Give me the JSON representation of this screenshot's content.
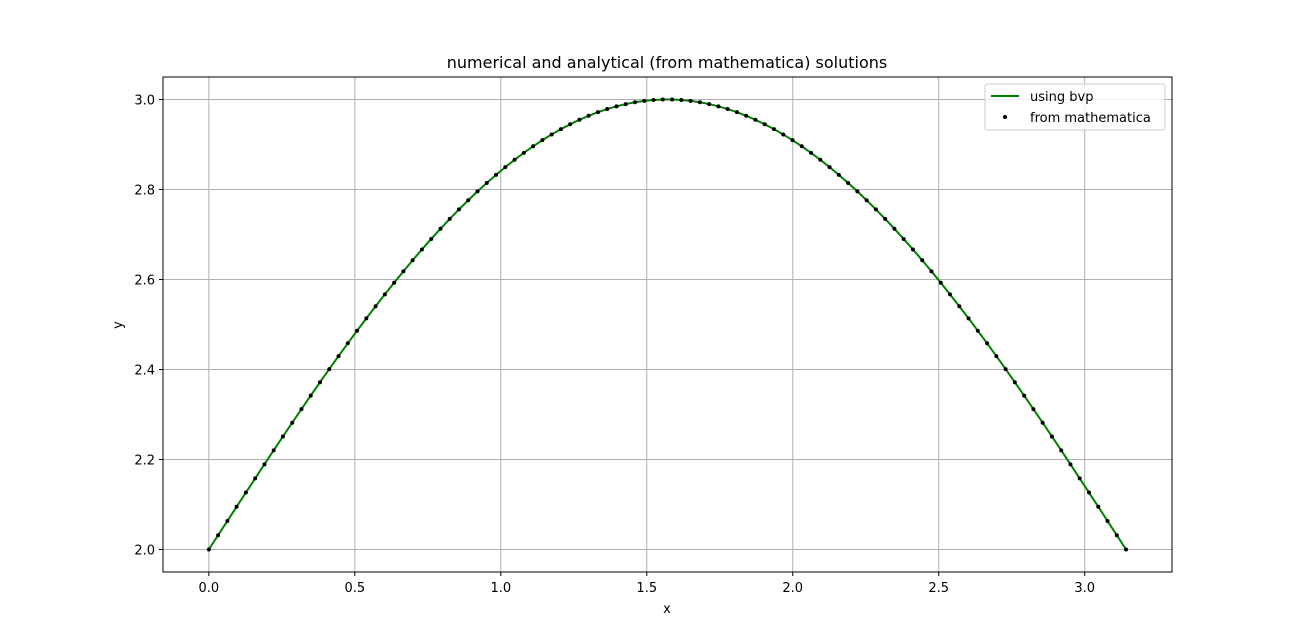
{
  "chart_data": {
    "type": "line",
    "title": "numerical and analytical (from mathematica) solutions",
    "xlabel": "x",
    "ylabel": "y",
    "xlim": [
      -0.157,
      3.299
    ],
    "ylim": [
      1.95,
      3.05
    ],
    "xticks": [
      "0.0",
      "0.5",
      "1.0",
      "1.5",
      "2.0",
      "2.5",
      "3.0"
    ],
    "yticks": [
      "2.0",
      "2.2",
      "2.4",
      "2.6",
      "2.8",
      "3.0"
    ],
    "grid": true,
    "legend_position": "top-right",
    "function": "y = 2 + sin(x)",
    "x_range": [
      0,
      3.14159
    ],
    "series": [
      {
        "name": "using bvp",
        "style": "line",
        "color": "#008000",
        "points": 100
      },
      {
        "name": "from mathematica",
        "style": "markers",
        "color": "#000000",
        "points": 100
      }
    ]
  }
}
